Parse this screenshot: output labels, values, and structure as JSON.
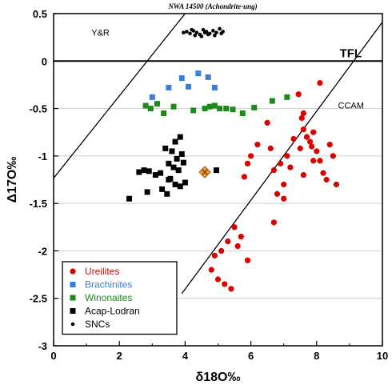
{
  "chart_data": {
    "type": "scatter",
    "title": "NWA 14500 (Achondrite-ung)",
    "xlabel": "δ18O‰",
    "ylabel": "Δ17O‰",
    "xlim": [
      0,
      10
    ],
    "ylim": [
      -3,
      0.5
    ],
    "xticks": [
      "0",
      "2",
      "4",
      "6",
      "8",
      "10"
    ],
    "yticks": [
      "0.5",
      "0",
      "-0.5",
      "-1",
      "-1.5",
      "-2",
      "-2.5",
      "-3"
    ],
    "grid": "horizontal",
    "legend_position": "bottom-left",
    "reference_lines": [
      {
        "name": "TFL",
        "x": [
          0,
          10
        ],
        "y": [
          0,
          0
        ],
        "color": "#000000"
      },
      {
        "name": "Y&R",
        "x": [
          -0.5,
          4.0
        ],
        "y": [
          -1.45,
          0.5
        ],
        "color": "#000000"
      },
      {
        "name": "CCAM",
        "x": [
          3.9,
          10.0
        ],
        "y": [
          -2.45,
          0.41
        ],
        "color": "#000000"
      }
    ],
    "series": [
      {
        "name": "Ureilites",
        "marker": "circle",
        "color": "#dd0000",
        "x": [
          8.1,
          7.45,
          7.6,
          7.55,
          7.6,
          7.7,
          7.8,
          7.9,
          7.85,
          8.0,
          8.1,
          8.4,
          8.5,
          8.3,
          8.6,
          7.5,
          7.3,
          7.1,
          6.9,
          6.7,
          6.6,
          6.5,
          7.2,
          7.6,
          7.9,
          8.2,
          7.0,
          6.8,
          6.2,
          6.0,
          5.9,
          5.8,
          5.5,
          5.3,
          5.1,
          4.9,
          4.8,
          5.0,
          5.2,
          5.4,
          5.6,
          5.7,
          5.9,
          6.7,
          7.0
        ],
        "y": [
          -0.23,
          -0.35,
          -0.55,
          -0.6,
          -0.72,
          -0.8,
          -0.85,
          -0.75,
          -0.9,
          -0.95,
          -1.05,
          -0.88,
          -1.0,
          -1.25,
          -1.3,
          -0.92,
          -0.82,
          -1.0,
          -1.08,
          -1.15,
          -0.92,
          -0.65,
          -1.12,
          -1.2,
          -1.05,
          -1.18,
          -1.3,
          -1.4,
          -0.88,
          -1.0,
          -1.08,
          -1.22,
          -1.75,
          -1.9,
          -2.0,
          -2.05,
          -2.2,
          -2.3,
          -2.35,
          -2.4,
          -1.95,
          -1.85,
          -2.1,
          -1.7,
          -1.45
        ]
      },
      {
        "name": "Brachinites",
        "marker": "square",
        "color": "#3a7fd5",
        "x": [
          3.0,
          3.5,
          3.9,
          4.1,
          4.4,
          4.7,
          4.9
        ],
        "y": [
          -0.38,
          -0.28,
          -0.18,
          -0.27,
          -0.13,
          -0.17,
          -0.28
        ]
      },
      {
        "name": "Winonaites",
        "marker": "square",
        "color": "#1e8a1e",
        "x": [
          2.8,
          2.95,
          3.15,
          3.35,
          3.65,
          4.25,
          4.6,
          4.75,
          4.9,
          5.05,
          5.25,
          5.45,
          5.75,
          6.1,
          6.65,
          7.1
        ],
        "y": [
          -0.47,
          -0.5,
          -0.45,
          -0.55,
          -0.48,
          -0.52,
          -0.5,
          -0.48,
          -0.47,
          -0.5,
          -0.5,
          -0.51,
          -0.55,
          -0.49,
          -0.42,
          -0.38
        ]
      },
      {
        "name": "Acap-Lodran",
        "marker": "square",
        "color": "#000000",
        "x": [
          3.85,
          3.4,
          3.6,
          3.7,
          3.75,
          3.9,
          3.5,
          3.65,
          3.8,
          3.95,
          2.6,
          2.75,
          2.9,
          3.1,
          3.25,
          3.55,
          3.7,
          3.85,
          4.0,
          3.3,
          3.5,
          2.85,
          3.45,
          2.3,
          4.95
        ],
        "y": [
          -0.8,
          -0.92,
          -0.95,
          -0.85,
          -1.03,
          -0.98,
          -1.08,
          -1.12,
          -1.15,
          -1.07,
          -1.17,
          -1.15,
          -1.16,
          -1.2,
          -1.18,
          -1.24,
          -1.3,
          -1.32,
          -1.28,
          -1.35,
          -1.25,
          -1.38,
          -1.4,
          -1.45,
          -1.15
        ]
      },
      {
        "name": "SNCs",
        "marker": "dot",
        "color": "#000000",
        "x": [
          3.95,
          4.05,
          4.15,
          4.25,
          4.35,
          4.45,
          4.55,
          4.65,
          4.75,
          4.85,
          4.95,
          5.05,
          5.15,
          4.3,
          4.5,
          4.7,
          4.9,
          5.1,
          4.2,
          4.6
        ],
        "y": [
          0.3,
          0.31,
          0.29,
          0.32,
          0.3,
          0.28,
          0.33,
          0.31,
          0.29,
          0.32,
          0.3,
          0.34,
          0.31,
          0.27,
          0.26,
          0.28,
          0.27,
          0.29,
          0.33,
          0.3
        ]
      },
      {
        "name": "NWA 14500",
        "marker": "cross-diamond",
        "color": "#ee9933",
        "show_in_legend": false,
        "x": [
          4.6
        ],
        "y": [
          -1.17
        ]
      }
    ]
  }
}
